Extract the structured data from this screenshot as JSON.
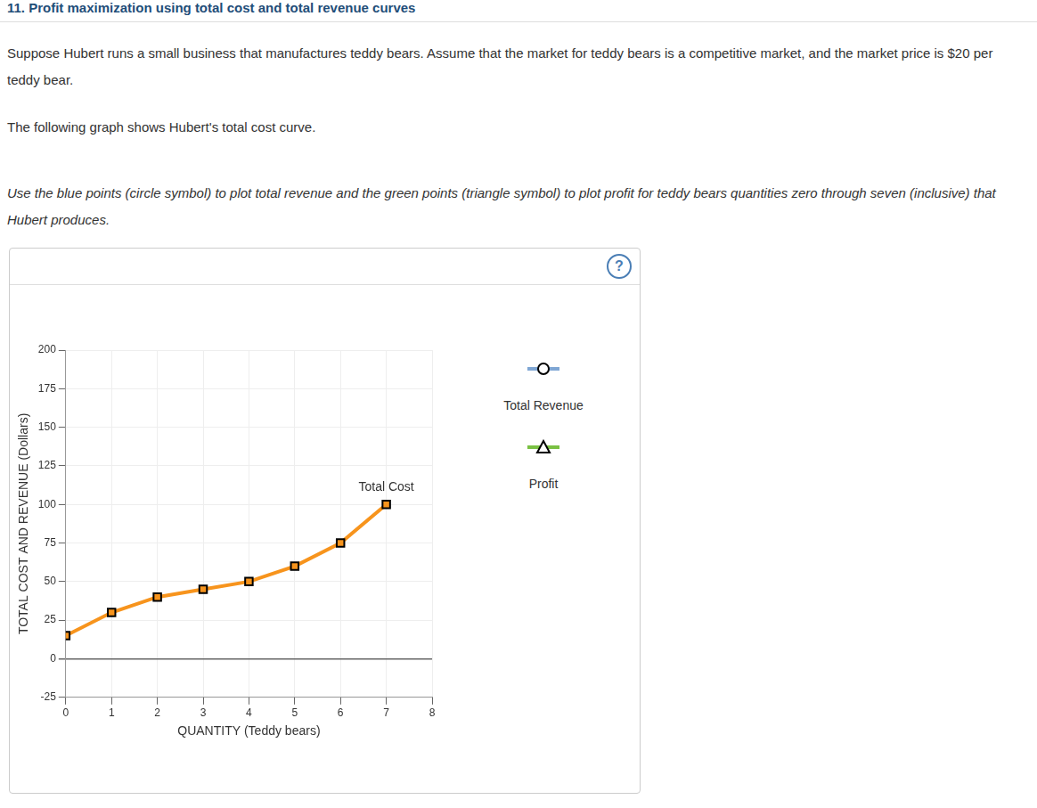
{
  "page": {
    "title": "11. Profit maximization using total cost and total revenue curves",
    "paragraphs": [
      "Suppose Hubert runs a small business that manufactures teddy bears. Assume that the market for teddy bears is a competitive market, and the market price is $20 per teddy bear.",
      "The following graph shows Hubert's total cost curve."
    ],
    "instruction": "Use the blue points (circle symbol) to plot total revenue and the green points (triangle symbol) to plot profit for teddy bears quantities zero through seven (inclusive) that Hubert produces.",
    "help_icon": "?"
  },
  "chart_data": {
    "type": "line",
    "x_label": "QUANTITY (Teddy bears)",
    "y_label": "TOTAL COST AND REVENUE (Dollars)",
    "x": [
      0,
      1,
      2,
      3,
      4,
      5,
      6,
      7
    ],
    "xlim": [
      0,
      8
    ],
    "xticks": [
      0,
      1,
      2,
      3,
      4,
      5,
      6,
      7,
      8
    ],
    "ylim": [
      -25,
      200
    ],
    "yticks": [
      -25,
      0,
      25,
      50,
      75,
      100,
      125,
      150,
      175,
      200
    ],
    "grid": true,
    "legend": "right",
    "series": [
      {
        "name": "Total Cost",
        "color": "#f7941d",
        "marker": "square",
        "values": [
          15,
          30,
          40,
          45,
          50,
          60,
          75,
          100
        ]
      },
      {
        "name": "Total Revenue",
        "color": "#7fa6d4",
        "marker": "circle",
        "values": [
          null,
          null,
          null,
          null,
          null,
          null,
          null,
          null
        ]
      },
      {
        "name": "Profit",
        "color": "#7ac143",
        "marker": "triangle",
        "values": [
          null,
          null,
          null,
          null,
          null,
          null,
          null,
          null
        ]
      }
    ]
  }
}
